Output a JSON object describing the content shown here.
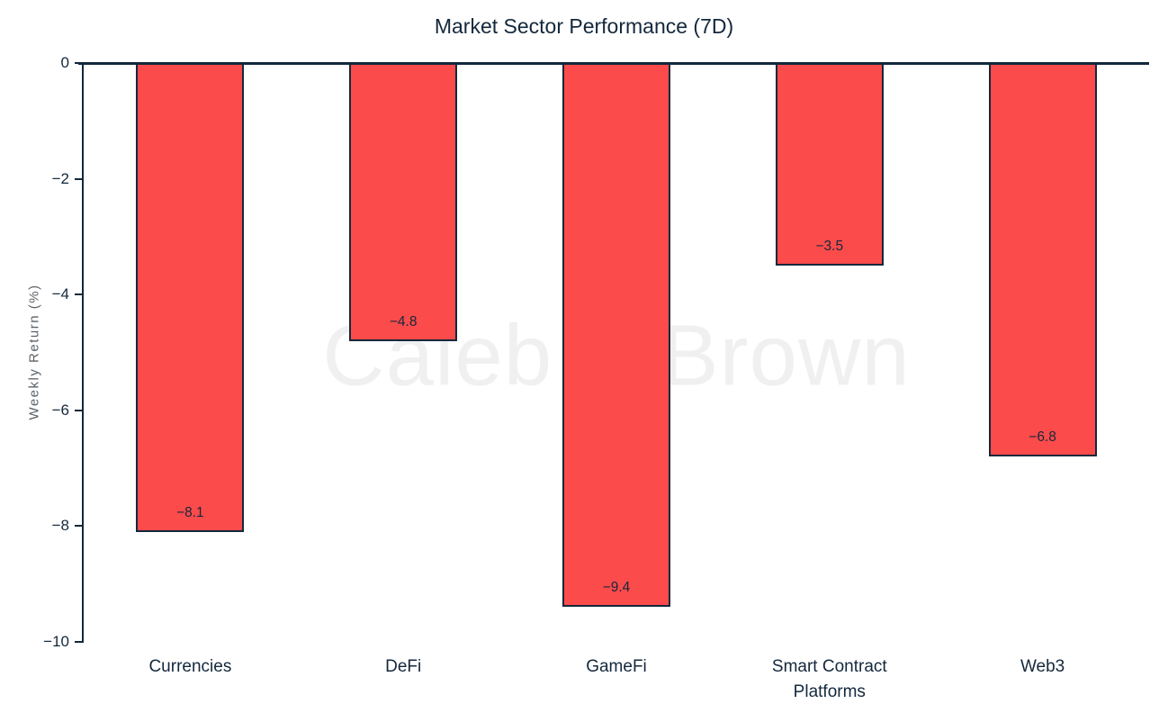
{
  "chart_data": {
    "type": "bar",
    "title": "Market Sector Performance (7D)",
    "xlabel": "",
    "ylabel": "Weekly Return (%)",
    "categories": [
      "Currencies",
      "DeFi",
      "GameFi",
      "Smart Contract\nPlatforms",
      "Web3"
    ],
    "values": [
      -8.1,
      -4.8,
      -9.4,
      -3.5,
      -6.8
    ],
    "bar_value_labels": [
      "−8.1",
      "−4.8",
      "−9.4",
      "−3.5",
      "−6.8"
    ],
    "ylim": [
      -10,
      0
    ],
    "yticks": [
      0,
      -2,
      -4,
      -6,
      -8,
      -10
    ],
    "ytick_labels": [
      "0",
      "−2",
      "−4",
      "−6",
      "−8",
      "−10"
    ],
    "grid": false,
    "legend": null,
    "bar_color": "#FC4B4B",
    "bar_edge_color": "#13283C"
  },
  "watermark": {
    "text": "Caleb & Brown",
    "color": "#F0F0F1"
  },
  "colors": {
    "background": "#FFFFFF",
    "axis": "#13283C",
    "tick_text": "#13283C",
    "axis_label_text": "#5C6269",
    "title_text": "#13283C"
  }
}
